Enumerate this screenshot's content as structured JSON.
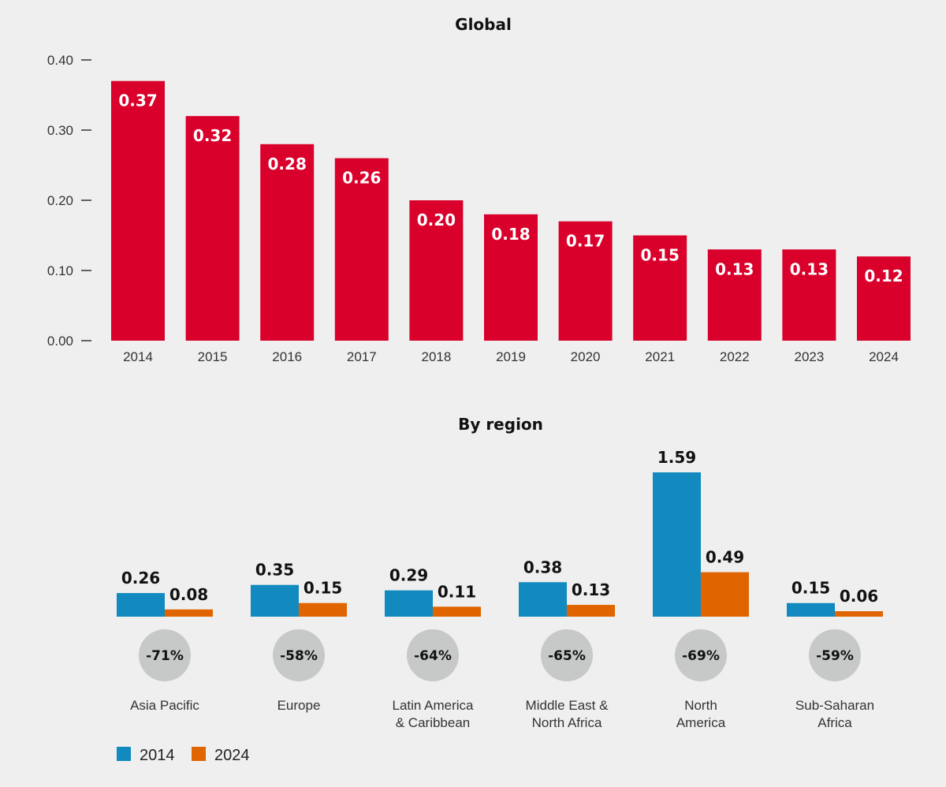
{
  "colors": {
    "global_bar": "#d9002b",
    "series_2014": "#1289bf",
    "series_2024": "#e06500",
    "pct_circle": "#c7c8c8",
    "axis": "#333333"
  },
  "chart_data": [
    {
      "type": "bar",
      "title": "Global",
      "categories": [
        "2014",
        "2015",
        "2016",
        "2017",
        "2018",
        "2019",
        "2020",
        "2021",
        "2022",
        "2023",
        "2024"
      ],
      "values": [
        0.37,
        0.32,
        0.28,
        0.26,
        0.2,
        0.18,
        0.17,
        0.15,
        0.13,
        0.13,
        0.12
      ],
      "value_labels": [
        "0.37",
        "0.32",
        "0.28",
        "0.26",
        "0.20",
        "0.18",
        "0.17",
        "0.15",
        "0.13",
        "0.13",
        "0.12"
      ],
      "ylim": [
        0,
        0.4
      ],
      "yticks": [
        0.0,
        0.1,
        0.2,
        0.3,
        0.4
      ],
      "ytick_labels": [
        "0.00",
        "0.10",
        "0.20",
        "0.30",
        "0.40"
      ],
      "xlabel": "",
      "ylabel": "",
      "grid": false
    },
    {
      "type": "bar",
      "title": "By region",
      "categories": [
        [
          "Asia Pacific"
        ],
        [
          "Europe"
        ],
        [
          "Latin America",
          "& Caribbean"
        ],
        [
          "Middle East &",
          "North Africa"
        ],
        [
          "North",
          "America"
        ],
        [
          "Sub-Saharan",
          "Africa"
        ]
      ],
      "series": [
        {
          "name": "2014",
          "values": [
            0.26,
            0.35,
            0.29,
            0.38,
            1.59,
            0.15
          ],
          "value_labels": [
            "0.26",
            "0.35",
            "0.29",
            "0.38",
            "1.59",
            "0.15"
          ]
        },
        {
          "name": "2024",
          "values": [
            0.08,
            0.15,
            0.11,
            0.13,
            0.49,
            0.06
          ],
          "value_labels": [
            "0.08",
            "0.15",
            "0.11",
            "0.13",
            "0.49",
            "0.06"
          ]
        }
      ],
      "change_labels": [
        "-71%",
        "-58%",
        "-64%",
        "-65%",
        "-69%",
        "-59%"
      ],
      "ylim": [
        0,
        1.6
      ],
      "legend": {
        "position": "bottom-left",
        "entries": [
          "2014",
          "2024"
        ]
      }
    }
  ]
}
